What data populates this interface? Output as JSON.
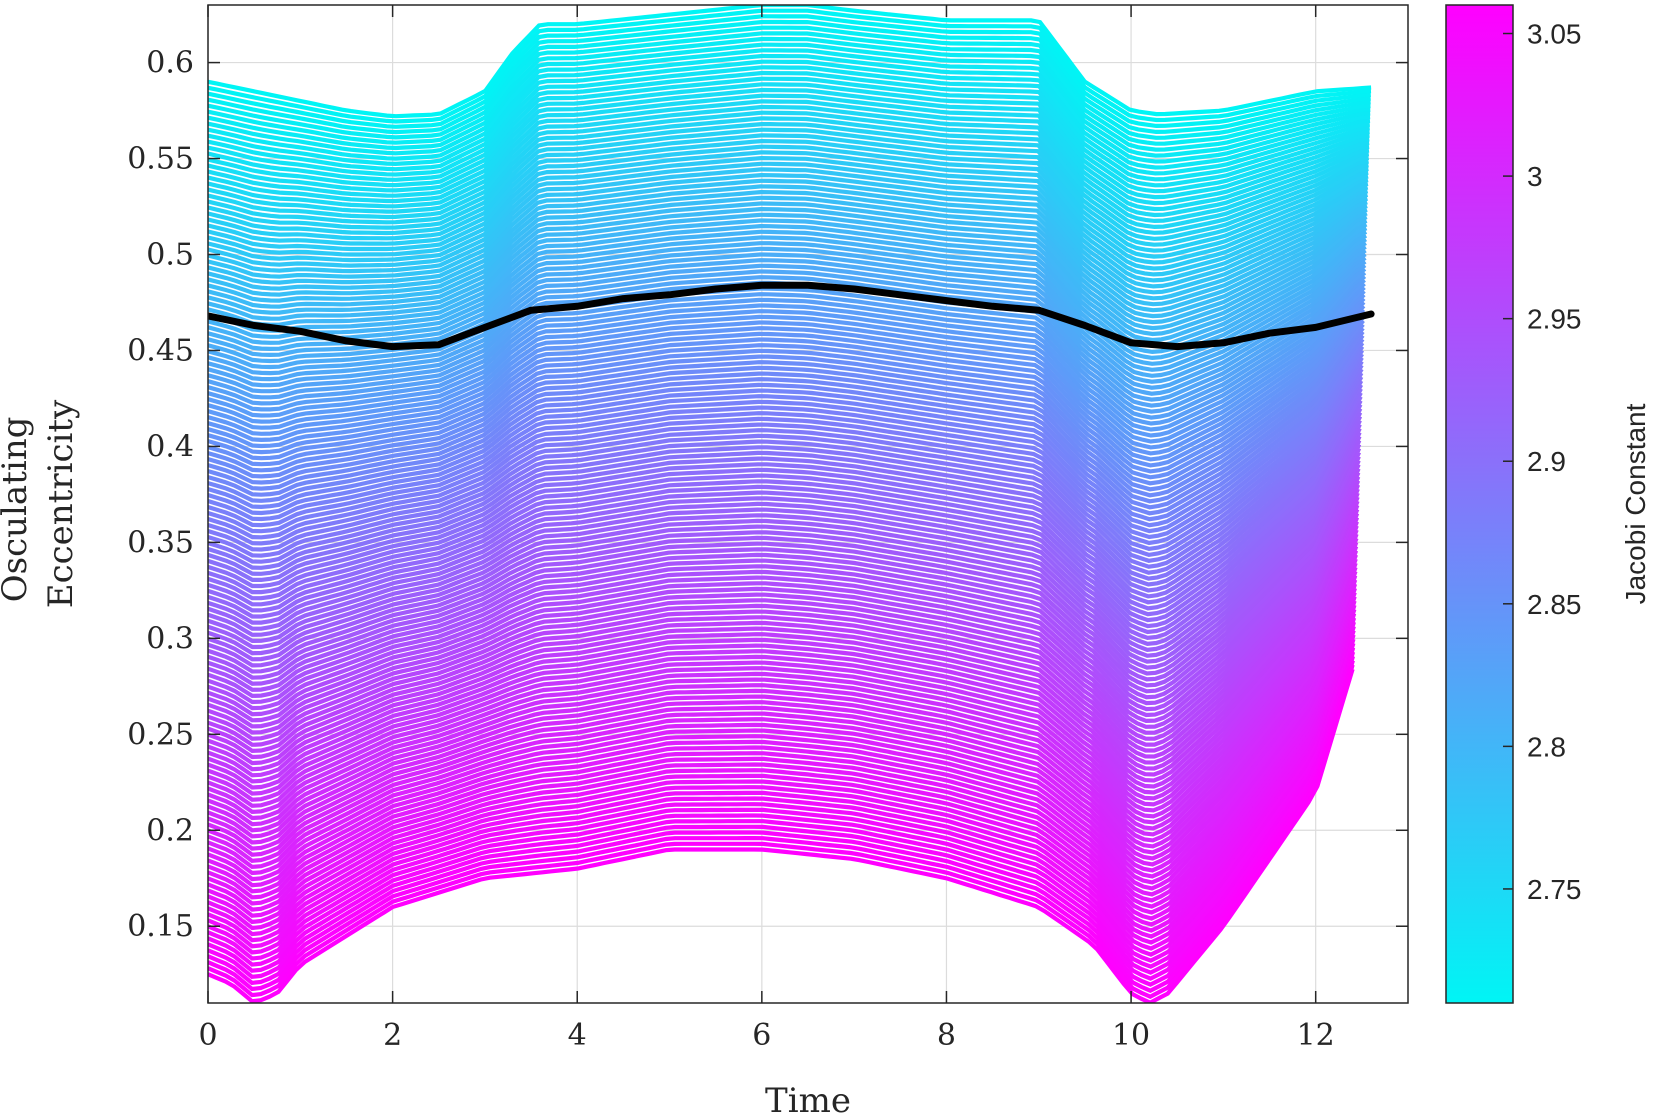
{
  "chart_data": {
    "type": "line",
    "xlabel": "Time",
    "ylabel_lines": [
      "Osculating",
      "Eccentricity"
    ],
    "xlim": [
      0,
      13
    ],
    "ylim": [
      0.11,
      0.63
    ],
    "xticks": [
      0,
      2,
      4,
      6,
      8,
      10,
      12
    ],
    "yticks": [
      0.15,
      0.2,
      0.25,
      0.3,
      0.35,
      0.4,
      0.45,
      0.5,
      0.55,
      0.6
    ],
    "x_tick_labels": [
      "0",
      "2",
      "4",
      "6",
      "8",
      "10",
      "12"
    ],
    "y_tick_labels": [
      "0.15",
      "0.2",
      "0.25",
      "0.3",
      "0.35",
      "0.4",
      "0.45",
      "0.5",
      "0.55",
      "0.6"
    ],
    "grid": true,
    "colorbar": {
      "title": "Jacobi Constant",
      "range": [
        2.71,
        3.06
      ],
      "ticks": [
        2.75,
        2.8,
        2.85,
        2.9,
        2.95,
        3.0,
        3.05
      ],
      "tick_labels": [
        "2.75",
        "2.8",
        "2.85",
        "2.9",
        "2.95",
        "3",
        "3.05"
      ],
      "color_low": "#00F5F5",
      "color_high": "#FF00FF"
    },
    "family": {
      "description_count": 150,
      "top_envelope": {
        "x": [
          0,
          0.5,
          1,
          1.5,
          2,
          2.5,
          3,
          3.3,
          3.6,
          4,
          5,
          6,
          6.5,
          7,
          8,
          9,
          9.5,
          10,
          10.3,
          11,
          12,
          12.6
        ],
        "y": [
          0.59,
          0.585,
          0.58,
          0.575,
          0.572,
          0.573,
          0.585,
          0.605,
          0.62,
          0.62,
          0.625,
          0.63,
          0.63,
          0.627,
          0.622,
          0.622,
          0.59,
          0.575,
          0.573,
          0.575,
          0.585,
          0.587
        ]
      },
      "bottom_envelope": {
        "x": [
          0,
          0.25,
          0.5,
          0.75,
          1,
          2,
          3,
          4,
          5,
          6,
          7,
          8,
          9,
          9.6,
          10,
          10.2,
          10.4,
          11,
          12,
          12.5
        ],
        "y": [
          0.125,
          0.12,
          0.11,
          0.115,
          0.13,
          0.16,
          0.175,
          0.18,
          0.19,
          0.19,
          0.185,
          0.175,
          0.16,
          0.14,
          0.115,
          0.11,
          0.115,
          0.15,
          0.22,
          0.3
        ]
      },
      "period_low_C": 12.6,
      "period_high_C": 12.4
    },
    "highlighted_orbit": {
      "color": "#000000",
      "x": [
        0,
        0.5,
        1,
        1.5,
        2,
        2.5,
        3,
        3.5,
        4,
        4.5,
        5,
        5.5,
        6,
        6.5,
        7,
        7.5,
        8,
        8.5,
        9,
        9.5,
        10,
        10.5,
        11,
        11.5,
        12,
        12.6
      ],
      "y": [
        0.468,
        0.463,
        0.46,
        0.455,
        0.452,
        0.453,
        0.462,
        0.471,
        0.473,
        0.477,
        0.479,
        0.482,
        0.484,
        0.484,
        0.482,
        0.479,
        0.476,
        0.473,
        0.471,
        0.463,
        0.454,
        0.452,
        0.454,
        0.459,
        0.462,
        0.469
      ]
    }
  }
}
